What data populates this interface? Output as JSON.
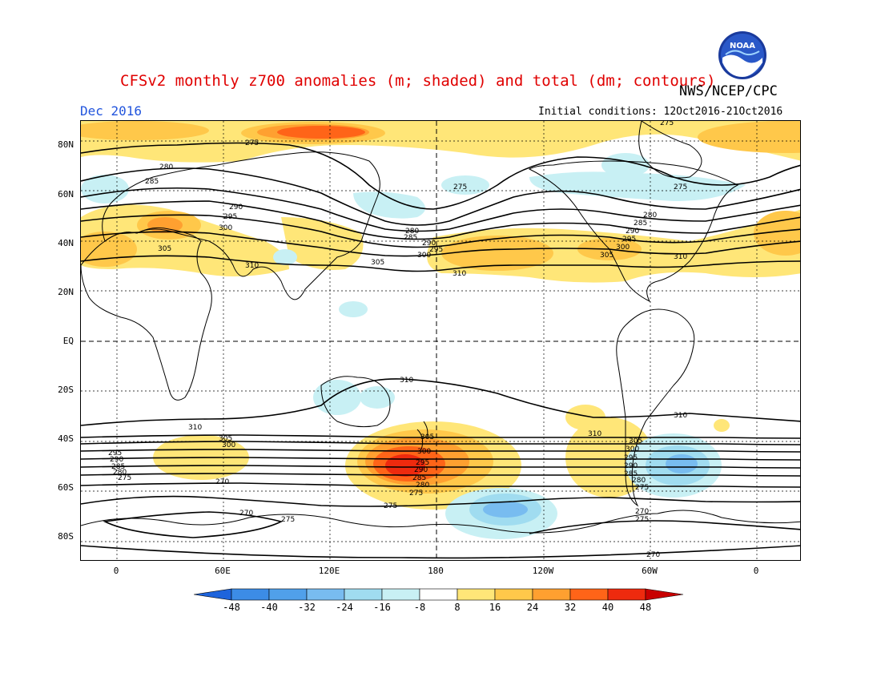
{
  "header": {
    "title": "CFSv2 monthly z700 anomalies (m; shaded) and total (dm; contours)",
    "agency": "NWS/NCEP/CPC",
    "valid_month": "Dec 2016",
    "initial_conditions": "Initial conditions: 12Oct2016-21Oct2016",
    "logo_text": "NOAA"
  },
  "map": {
    "lat_labels": [
      "80N",
      "60N",
      "40N",
      "20N",
      "EQ",
      "20S",
      "40S",
      "60S",
      "80S"
    ],
    "lon_labels": [
      "0",
      "60E",
      "120E",
      "180",
      "120W",
      "60W",
      "0"
    ],
    "contour_labels": [
      "270",
      "275",
      "280",
      "285",
      "290",
      "295",
      "300",
      "305",
      "310"
    ]
  },
  "colorbar": {
    "ticks": [
      "-48",
      "-40",
      "-32",
      "-24",
      "-16",
      "-8",
      "8",
      "16",
      "24",
      "32",
      "40",
      "48"
    ],
    "colors": {
      "neg_end": "#1e64dc",
      "neg48": "#2878e6",
      "neg40": "#3c8ce6",
      "neg32": "#50a0ea",
      "neg24": "#78bcf0",
      "neg16": "#a0dcf0",
      "neg8": "#c8f0f4",
      "neutral": "#ffffff",
      "pos8": "#ffe678",
      "pos16": "#ffc84a",
      "pos24": "#ffa030",
      "pos32": "#ff6418",
      "pos40": "#ee2a0e",
      "pos48": "#c80000"
    }
  }
}
